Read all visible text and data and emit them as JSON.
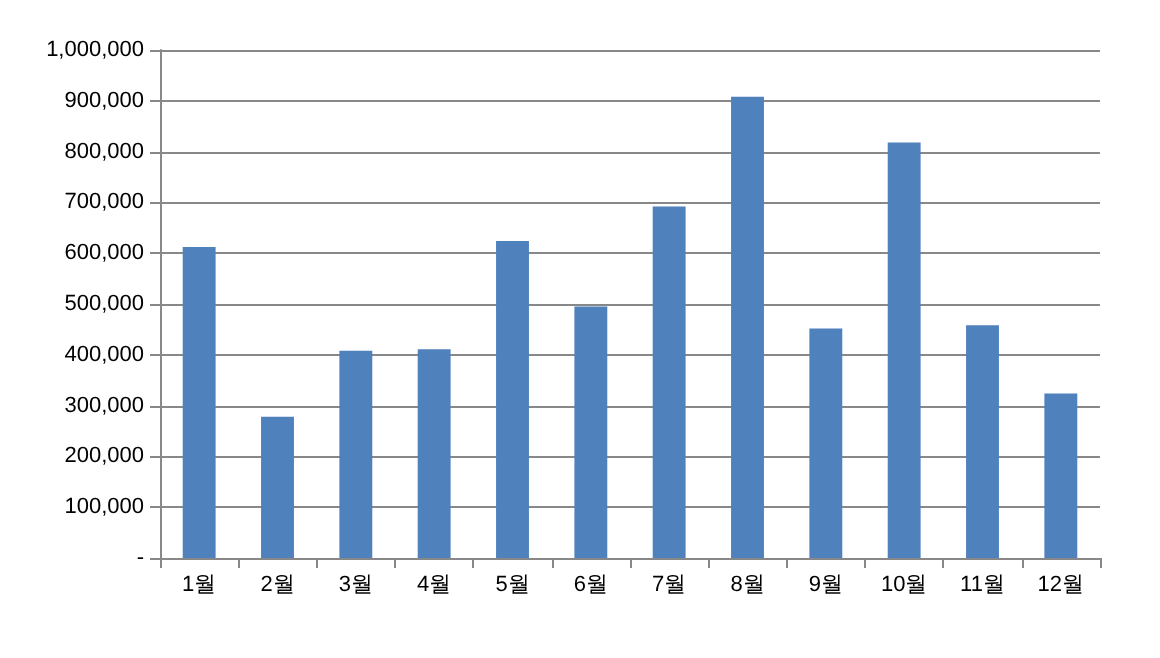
{
  "chart_data": {
    "type": "bar",
    "categories": [
      "1월",
      "2월",
      "3월",
      "4월",
      "5월",
      "6월",
      "7월",
      "8월",
      "9월",
      "10월",
      "11월",
      "12월"
    ],
    "values": [
      612000,
      278000,
      408000,
      411000,
      624000,
      495000,
      692000,
      908000,
      452000,
      818000,
      458000,
      324000
    ],
    "color": "#4f81bd",
    "ylim": [
      0,
      1000000
    ],
    "yticks": [
      {
        "value": 0,
        "label": "-"
      },
      {
        "value": 100000,
        "label": "100,000"
      },
      {
        "value": 200000,
        "label": "200,000"
      },
      {
        "value": 300000,
        "label": "300,000"
      },
      {
        "value": 400000,
        "label": "400,000"
      },
      {
        "value": 500000,
        "label": "500,000"
      },
      {
        "value": 600000,
        "label": "600,000"
      },
      {
        "value": 700000,
        "label": "700,000"
      },
      {
        "value": 800000,
        "label": "800,000"
      },
      {
        "value": 900000,
        "label": "900,000"
      },
      {
        "value": 1000000,
        "label": "1,000,000"
      }
    ],
    "grid": "y"
  }
}
